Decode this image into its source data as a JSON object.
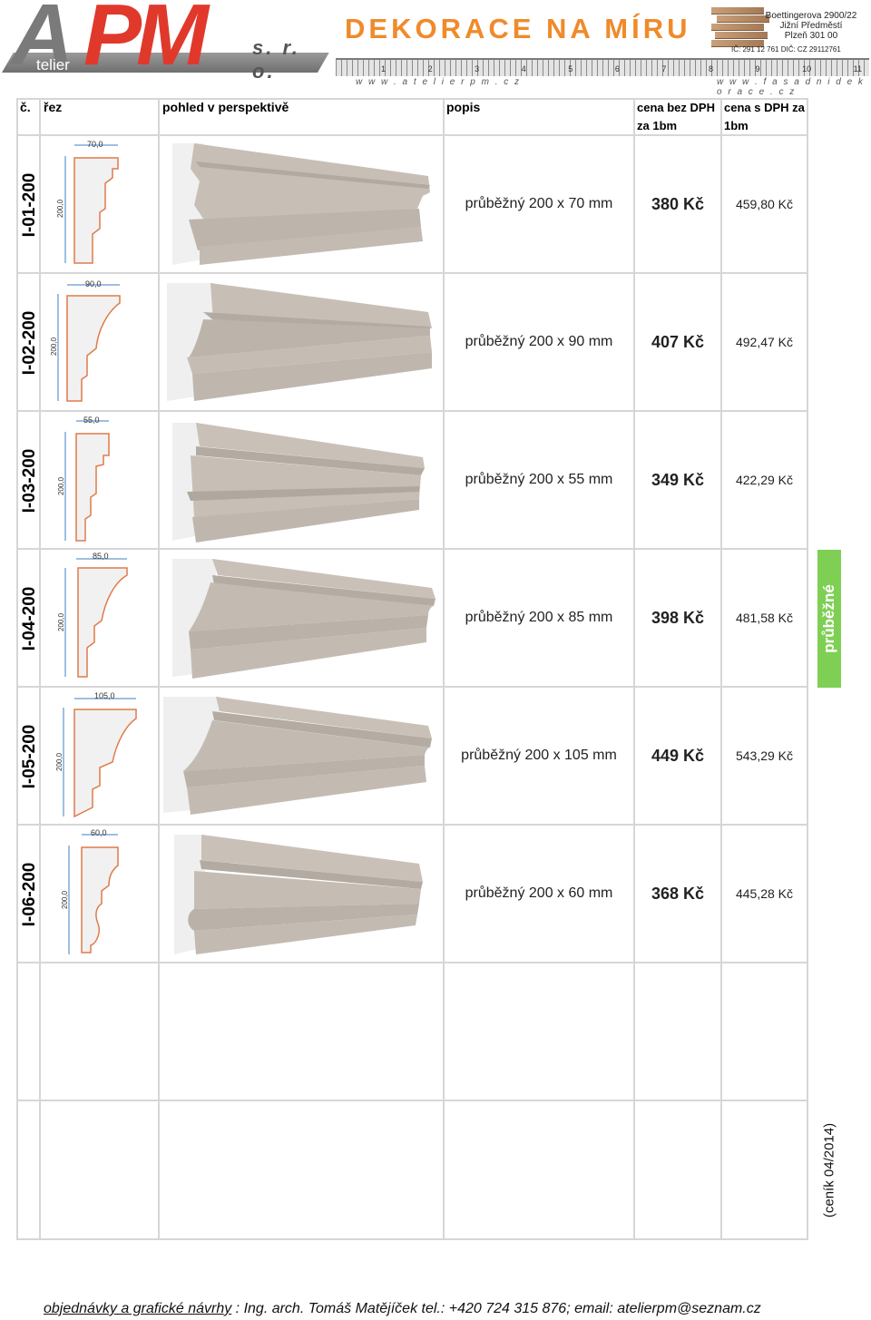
{
  "header": {
    "logo_letters_a": "A",
    "logo_letters_pm": "PM",
    "logo_sub": "telier",
    "logo_sro": "s. r. o.",
    "title": "DEKORACE NA MÍRU",
    "web_left": "w w w . a t e l i e r p m . c z",
    "web_right": "w w w . f a s a d n i d e k o r a c e . c z",
    "ruler_numbers": [
      "1",
      "2",
      "3",
      "4",
      "5",
      "6",
      "7",
      "8",
      "9",
      "10",
      "11"
    ],
    "address_lines": [
      "Boettingerova 2900/22",
      "Jižní Předměstí",
      "Plzeň   301 00"
    ],
    "ids": "IČ: 291 12 761      DIČ: CZ 29112761",
    "brand_red": "#e0392b",
    "brand_orange": "#f08a2a"
  },
  "table_header": {
    "col_no": "č.",
    "col_section": "řez",
    "col_perspective": "pohled v perspektivě",
    "col_desc": "popis",
    "col_price": "cena bez DPH za 1bm",
    "col_price_vat": "cena s DPH za 1bm"
  },
  "rows": [
    {
      "code": "I-01-200",
      "width_label": "70,0",
      "height_label": "200,0",
      "desc": "průběžný 200 x 70 mm",
      "price": "380 Kč",
      "price_vat": "459,80 Kč"
    },
    {
      "code": "I-02-200",
      "width_label": "90,0",
      "height_label": "200,0",
      "desc": "průběžný 200 x 90 mm",
      "price": "407 Kč",
      "price_vat": "492,47 Kč"
    },
    {
      "code": "I-03-200",
      "width_label": "55,0",
      "height_label": "200,0",
      "desc": "průběžný 200 x 55 mm",
      "price": "349 Kč",
      "price_vat": "422,29 Kč"
    },
    {
      "code": "I-04-200",
      "width_label": "85,0",
      "height_label": "200,0",
      "desc": "průběžný 200 x 85 mm",
      "price": "398 Kč",
      "price_vat": "481,58 Kč"
    },
    {
      "code": "I-05-200",
      "width_label": "105,0",
      "height_label": "200,0",
      "desc": "průběžný 200 x 105 mm",
      "price": "449 Kč",
      "price_vat": "543,29 Kč"
    },
    {
      "code": "I-06-200",
      "width_label": "60,0",
      "height_label": "200,0",
      "desc": "průběžný 200 x 60 mm",
      "price": "368 Kč",
      "price_vat": "445,28 Kč"
    }
  ],
  "side_tag": "průběžné",
  "side_tag_color": "#7fcf55",
  "cenik": "(ceník 04/2014)",
  "footer": {
    "lead": "objednávky a grafické návrhy",
    "rest": " :    Ing. arch. Tomáš Matějíček    tel.: +420 724 315 876; email: atelierpm@seznam.cz"
  }
}
